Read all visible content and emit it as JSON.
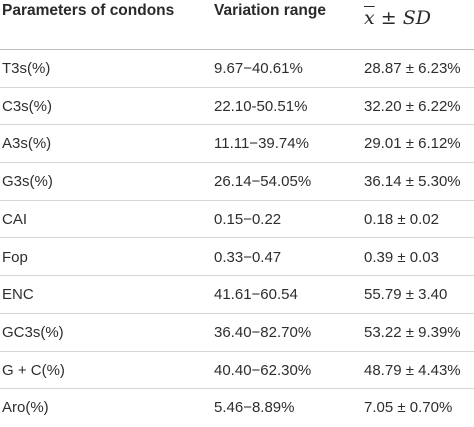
{
  "headers": {
    "parameter": "Parameters of condons",
    "range": "Variation range",
    "stat_x": "x",
    "stat_rest": " ± SD"
  },
  "rows": [
    {
      "param": "T3s(%)",
      "range": "9.67−40.61%",
      "stat": "28.87 ± 6.23%"
    },
    {
      "param": "C3s(%)",
      "range": "22.10-50.51%",
      "stat": "32.20 ± 6.22%"
    },
    {
      "param": "A3s(%)",
      "range": "11.11−39.74%",
      "stat": "29.01 ± 6.12%"
    },
    {
      "param": "G3s(%)",
      "range": "26.14−54.05%",
      "stat": "36.14 ± 5.30%"
    },
    {
      "param": "CAI",
      "range": "0.15−0.22",
      "stat": "0.18 ± 0.02"
    },
    {
      "param": "Fop",
      "range": "0.33−0.47",
      "stat": "0.39 ± 0.03"
    },
    {
      "param": "ENC",
      "range": "41.61−60.54",
      "stat": "55.79 ± 3.40"
    },
    {
      "param": "GC3s(%)",
      "range": "36.40−82.70%",
      "stat": "53.22 ± 9.39%"
    },
    {
      "param": "G + C(%)",
      "range": "40.40−62.30%",
      "stat": "48.79 ± 4.43%"
    },
    {
      "param": "Aro(%)",
      "range": "5.46−8.89%",
      "stat": "7.05 ± 0.70%"
    }
  ]
}
